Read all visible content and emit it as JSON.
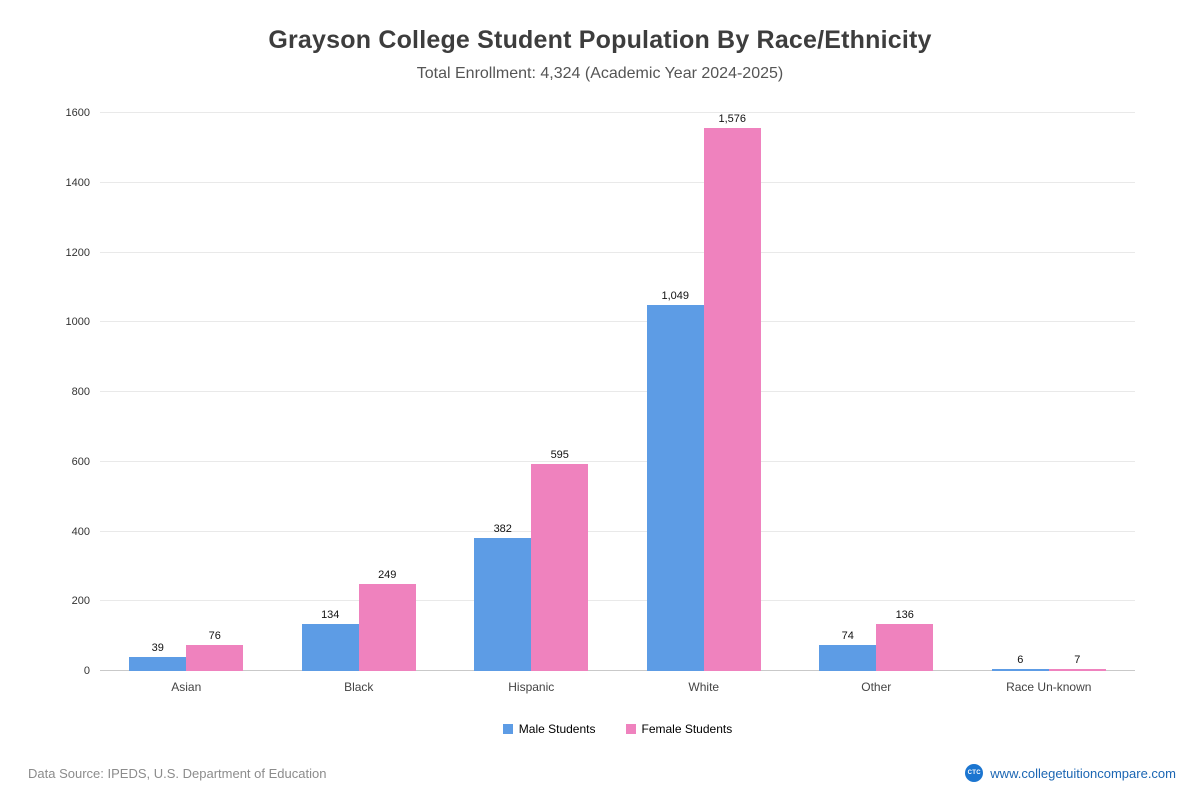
{
  "header": {
    "title": "Grayson College Student Population By Race/Ethnicity",
    "subtitle": "Total Enrollment: 4,324 (Academic Year 2024-2025)"
  },
  "chart_data": {
    "type": "bar",
    "title": "Grayson College Student Population By Race/Ethnicity",
    "subtitle": "Total Enrollment: 4,324 (Academic Year 2024-2025)",
    "categories": [
      "Asian",
      "Black",
      "Hispanic",
      "White",
      "Other",
      "Race Un-known"
    ],
    "series": [
      {
        "name": "Male Students",
        "color": "#5d9ce5",
        "values": [
          39,
          134,
          382,
          1049,
          74,
          6
        ]
      },
      {
        "name": "Female Students",
        "color": "#ef82be",
        "values": [
          76,
          249,
          595,
          1576,
          136,
          7
        ]
      }
    ],
    "xlabel": "",
    "ylabel": "",
    "ylim": [
      0,
      1600
    ],
    "ytick_step": 200,
    "grid": true,
    "legend_position": "bottom"
  },
  "footer": {
    "source": "Data Source: IPEDS, U.S. Department of Education",
    "site": "www.collegetuitioncompare.com",
    "site_icon_label": "CTC"
  }
}
